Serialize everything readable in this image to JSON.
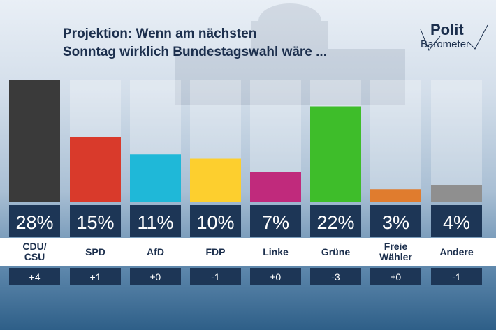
{
  "title_line1": "Projektion: Wenn am nächsten",
  "title_line2": "Sonntag wirklich Bundestagswahl wäre ...",
  "logo": {
    "line1": "Polit",
    "line2": "Barometer"
  },
  "colors": {
    "CDU/CSU": "#3a3a3a",
    "SPD": "#d93a2b",
    "AfD": "#1fb8d8",
    "FDP": "#fdcf2e",
    "Linke": "#c02a7c",
    "Grüne": "#3ebd2a",
    "Freie Wähler": "#e07c2e",
    "Andere": "#8f8f8f",
    "value_box": "#1d3656",
    "slot": "rgba(255,255,255,0.28)"
  },
  "chart_data": {
    "type": "bar",
    "title": "Projektion: Wenn am nächsten Sonntag wirklich Bundestagswahl wäre ...",
    "categories": [
      "CDU/CSU",
      "SPD",
      "AfD",
      "FDP",
      "Linke",
      "Grüne",
      "Freie Wähler",
      "Andere"
    ],
    "category_labels": [
      "CDU/\nCSU",
      "SPD",
      "AfD",
      "FDP",
      "Linke",
      "Grüne",
      "Freie\nWähler",
      "Andere"
    ],
    "values": [
      28,
      15,
      11,
      10,
      7,
      22,
      3,
      4
    ],
    "value_labels": [
      "28%",
      "15%",
      "11%",
      "10%",
      "7%",
      "22%",
      "3%",
      "4%"
    ],
    "changes": [
      "+4",
      "+1",
      "±0",
      "-1",
      "±0",
      "-3",
      "±0",
      "-1"
    ],
    "ylim": [
      0,
      28
    ],
    "unit": "%"
  }
}
